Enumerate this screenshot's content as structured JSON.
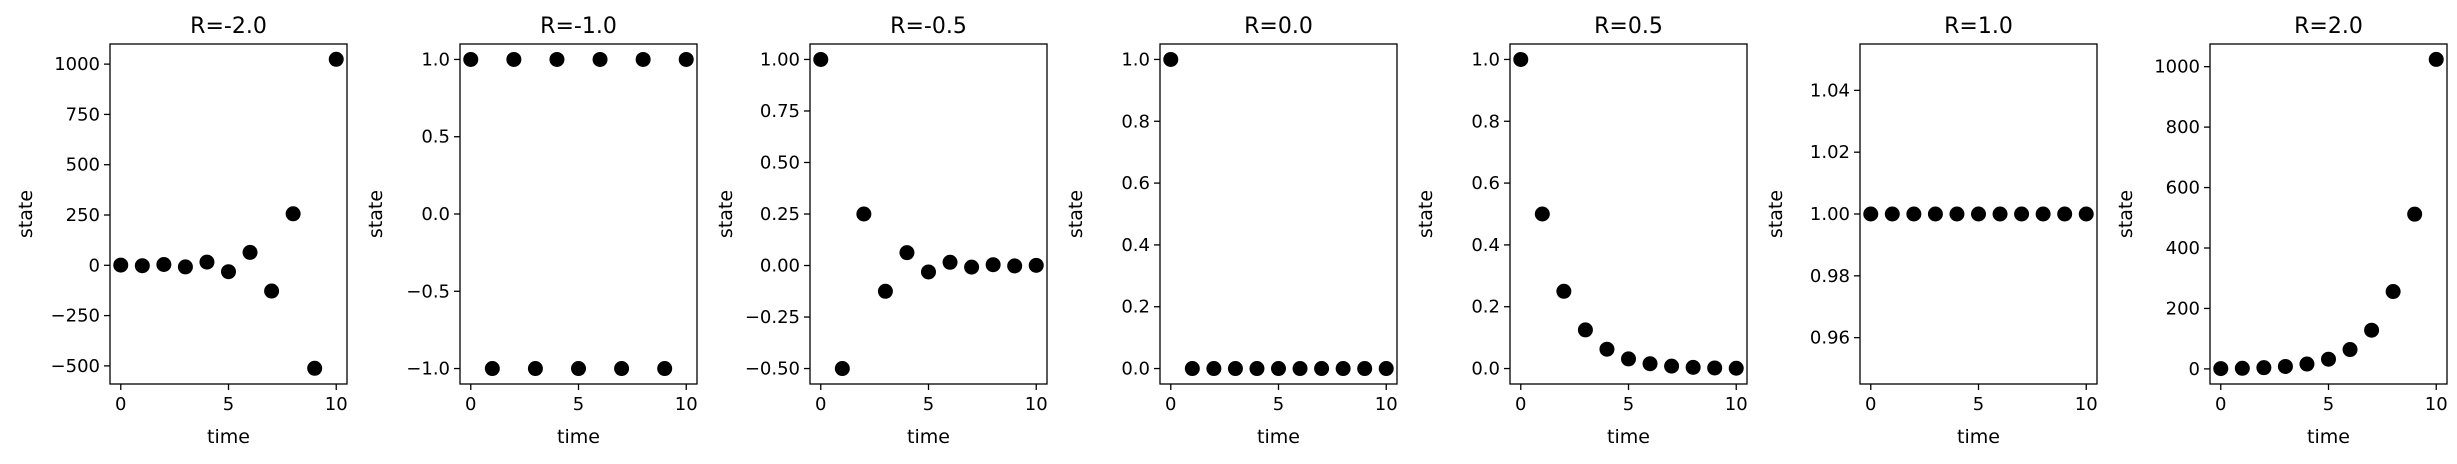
{
  "chart_data": [
    {
      "type": "scatter",
      "title": "R=-2.0",
      "xlabel": "time",
      "ylabel": "state",
      "xlim": [
        -0.5,
        10.5
      ],
      "ylim": [
        -590,
        1100
      ],
      "x_ticks": [
        0,
        5,
        10
      ],
      "x_tick_labels": [
        "0",
        "5",
        "10"
      ],
      "y_ticks": [
        -500,
        -250,
        0,
        250,
        500,
        750,
        1000
      ],
      "y_tick_labels": [
        "−500",
        "−250",
        "0",
        "250",
        "500",
        "750",
        "1000"
      ],
      "marker_color": "#000000",
      "x": [
        0,
        1,
        2,
        3,
        4,
        5,
        6,
        7,
        8,
        9,
        10
      ],
      "y": [
        1,
        -2,
        4,
        -8,
        16,
        -32,
        64,
        -128,
        256,
        -512,
        1024
      ]
    },
    {
      "type": "scatter",
      "title": "R=-1.0",
      "xlabel": "time",
      "ylabel": "state",
      "xlim": [
        -0.5,
        10.5
      ],
      "ylim": [
        -1.1,
        1.1
      ],
      "x_ticks": [
        0,
        5,
        10
      ],
      "x_tick_labels": [
        "0",
        "5",
        "10"
      ],
      "y_ticks": [
        -1.0,
        -0.5,
        0.0,
        0.5,
        1.0
      ],
      "y_tick_labels": [
        "−1.0",
        "−0.5",
        "0.0",
        "0.5",
        "1.0"
      ],
      "marker_color": "#000000",
      "x": [
        0,
        1,
        2,
        3,
        4,
        5,
        6,
        7,
        8,
        9,
        10
      ],
      "y": [
        1,
        -1,
        1,
        -1,
        1,
        -1,
        1,
        -1,
        1,
        -1,
        1
      ]
    },
    {
      "type": "scatter",
      "title": "R=-0.5",
      "xlabel": "time",
      "ylabel": "state",
      "xlim": [
        -0.5,
        10.5
      ],
      "ylim": [
        -0.575,
        1.075
      ],
      "x_ticks": [
        0,
        5,
        10
      ],
      "x_tick_labels": [
        "0",
        "5",
        "10"
      ],
      "y_ticks": [
        -0.5,
        -0.25,
        0.0,
        0.25,
        0.5,
        0.75,
        1.0
      ],
      "y_tick_labels": [
        "−0.50",
        "−0.25",
        "0.00",
        "0.25",
        "0.50",
        "0.75",
        "1.00"
      ],
      "marker_color": "#000000",
      "x": [
        0,
        1,
        2,
        3,
        4,
        5,
        6,
        7,
        8,
        9,
        10
      ],
      "y": [
        1,
        -0.5,
        0.25,
        -0.125,
        0.0625,
        -0.03125,
        0.015625,
        -0.0078125,
        0.00390625,
        -0.001953125,
        0.0009765625
      ]
    },
    {
      "type": "scatter",
      "title": "R=0.0",
      "xlabel": "time",
      "ylabel": "state",
      "xlim": [
        -0.5,
        10.5
      ],
      "ylim": [
        -0.05,
        1.05
      ],
      "x_ticks": [
        0,
        5,
        10
      ],
      "x_tick_labels": [
        "0",
        "5",
        "10"
      ],
      "y_ticks": [
        0.0,
        0.2,
        0.4,
        0.6,
        0.8,
        1.0
      ],
      "y_tick_labels": [
        "0.0",
        "0.2",
        "0.4",
        "0.6",
        "0.8",
        "1.0"
      ],
      "marker_color": "#000000",
      "x": [
        0,
        1,
        2,
        3,
        4,
        5,
        6,
        7,
        8,
        9,
        10
      ],
      "y": [
        1,
        0,
        0,
        0,
        0,
        0,
        0,
        0,
        0,
        0,
        0
      ]
    },
    {
      "type": "scatter",
      "title": "R=0.5",
      "xlabel": "time",
      "ylabel": "state",
      "xlim": [
        -0.5,
        10.5
      ],
      "ylim": [
        -0.05,
        1.05
      ],
      "x_ticks": [
        0,
        5,
        10
      ],
      "x_tick_labels": [
        "0",
        "5",
        "10"
      ],
      "y_ticks": [
        0.0,
        0.2,
        0.4,
        0.6,
        0.8,
        1.0
      ],
      "y_tick_labels": [
        "0.0",
        "0.2",
        "0.4",
        "0.6",
        "0.8",
        "1.0"
      ],
      "marker_color": "#000000",
      "x": [
        0,
        1,
        2,
        3,
        4,
        5,
        6,
        7,
        8,
        9,
        10
      ],
      "y": [
        1,
        0.5,
        0.25,
        0.125,
        0.0625,
        0.03125,
        0.015625,
        0.0078125,
        0.00390625,
        0.001953125,
        0.0009765625
      ]
    },
    {
      "type": "scatter",
      "title": "R=1.0",
      "xlabel": "time",
      "ylabel": "state",
      "xlim": [
        -0.5,
        10.5
      ],
      "ylim": [
        0.945,
        1.055
      ],
      "x_ticks": [
        0,
        5,
        10
      ],
      "x_tick_labels": [
        "0",
        "5",
        "10"
      ],
      "y_ticks": [
        0.96,
        0.98,
        1.0,
        1.02,
        1.04
      ],
      "y_tick_labels": [
        "0.96",
        "0.98",
        "1.00",
        "1.02",
        "1.04"
      ],
      "marker_color": "#000000",
      "x": [
        0,
        1,
        2,
        3,
        4,
        5,
        6,
        7,
        8,
        9,
        10
      ],
      "y": [
        1,
        1,
        1,
        1,
        1,
        1,
        1,
        1,
        1,
        1,
        1
      ]
    },
    {
      "type": "scatter",
      "title": "R=2.0",
      "xlabel": "time",
      "ylabel": "state",
      "xlim": [
        -0.5,
        10.5
      ],
      "ylim": [
        -50,
        1075
      ],
      "x_ticks": [
        0,
        5,
        10
      ],
      "x_tick_labels": [
        "0",
        "5",
        "10"
      ],
      "y_ticks": [
        0,
        200,
        400,
        600,
        800,
        1000
      ],
      "y_tick_labels": [
        "0",
        "200",
        "400",
        "600",
        "800",
        "1000"
      ],
      "marker_color": "#000000",
      "x": [
        0,
        1,
        2,
        3,
        4,
        5,
        6,
        7,
        8,
        9,
        10
      ],
      "y": [
        1,
        2,
        4,
        8,
        16,
        32,
        64,
        128,
        256,
        512,
        1024
      ]
    }
  ]
}
